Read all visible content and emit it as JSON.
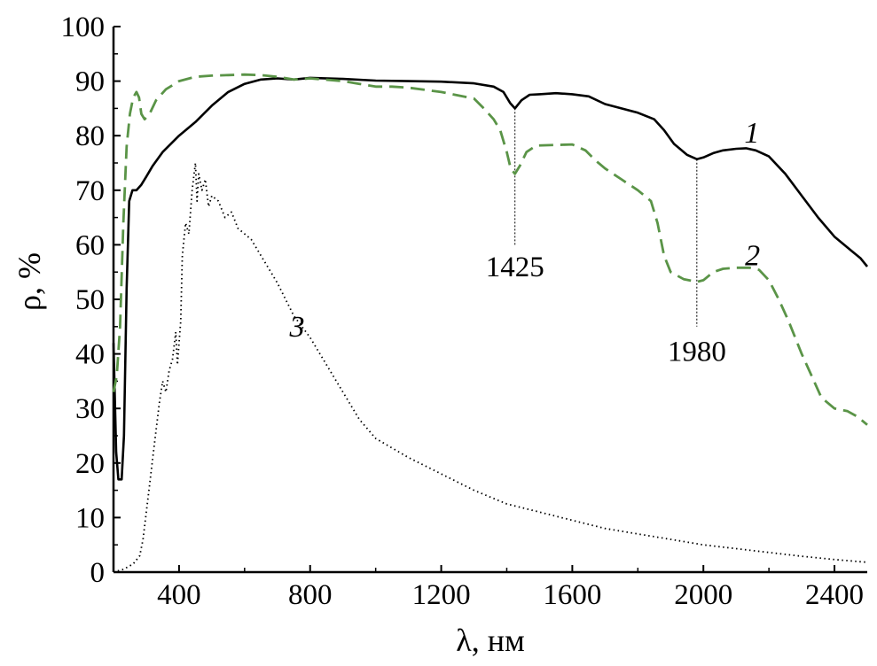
{
  "chart_data": {
    "type": "line",
    "xlabel": "λ, нм",
    "ylabel": "ρ, %",
    "xlim": [
      200,
      2500
    ],
    "ylim": [
      0,
      100
    ],
    "grid": false,
    "x_ticks": [
      400,
      800,
      1200,
      1600,
      2000,
      2400
    ],
    "y_ticks": [
      0,
      10,
      20,
      30,
      40,
      50,
      60,
      70,
      80,
      90,
      100
    ],
    "series": [
      {
        "name": "1",
        "style": "solid",
        "color": "#000000",
        "label_at": [
          2148,
          80.5
        ],
        "points": [
          [
            200,
            42
          ],
          [
            208,
            22
          ],
          [
            215,
            17
          ],
          [
            225,
            17
          ],
          [
            232,
            25
          ],
          [
            240,
            52
          ],
          [
            248,
            68
          ],
          [
            258,
            70
          ],
          [
            270,
            70
          ],
          [
            285,
            71
          ],
          [
            300,
            72.5
          ],
          [
            320,
            74.5
          ],
          [
            350,
            77
          ],
          [
            400,
            80
          ],
          [
            450,
            82.5
          ],
          [
            500,
            85.5
          ],
          [
            550,
            88
          ],
          [
            600,
            89.5
          ],
          [
            650,
            90.3
          ],
          [
            700,
            90.5
          ],
          [
            750,
            90.3
          ],
          [
            800,
            90.6
          ],
          [
            900,
            90.4
          ],
          [
            1000,
            90.1
          ],
          [
            1100,
            90
          ],
          [
            1200,
            89.9
          ],
          [
            1300,
            89.6
          ],
          [
            1360,
            89
          ],
          [
            1390,
            88
          ],
          [
            1410,
            86
          ],
          [
            1425,
            85
          ],
          [
            1445,
            86.5
          ],
          [
            1470,
            87.5
          ],
          [
            1500,
            87.6
          ],
          [
            1550,
            87.8
          ],
          [
            1600,
            87.6
          ],
          [
            1650,
            87.2
          ],
          [
            1700,
            85.8
          ],
          [
            1750,
            85
          ],
          [
            1800,
            84.2
          ],
          [
            1850,
            83
          ],
          [
            1880,
            81
          ],
          [
            1910,
            78.5
          ],
          [
            1950,
            76.5
          ],
          [
            1980,
            75.7
          ],
          [
            2000,
            76
          ],
          [
            2030,
            76.8
          ],
          [
            2060,
            77.3
          ],
          [
            2100,
            77.6
          ],
          [
            2130,
            77.7
          ],
          [
            2160,
            77.3
          ],
          [
            2200,
            76.2
          ],
          [
            2250,
            73
          ],
          [
            2300,
            69
          ],
          [
            2350,
            65
          ],
          [
            2400,
            61.5
          ],
          [
            2450,
            59
          ],
          [
            2480,
            57.5
          ],
          [
            2500,
            56
          ]
        ]
      },
      {
        "name": "2",
        "style": "dashed",
        "color": "#5a9447",
        "label_at": [
          2150,
          58
        ],
        "points": [
          [
            200,
            33
          ],
          [
            210,
            36
          ],
          [
            220,
            45
          ],
          [
            230,
            64
          ],
          [
            240,
            78
          ],
          [
            250,
            84
          ],
          [
            260,
            87
          ],
          [
            270,
            88
          ],
          [
            278,
            87
          ],
          [
            285,
            84
          ],
          [
            295,
            83
          ],
          [
            310,
            84
          ],
          [
            330,
            86.5
          ],
          [
            360,
            88.5
          ],
          [
            400,
            90
          ],
          [
            450,
            90.8
          ],
          [
            500,
            91
          ],
          [
            550,
            91.1
          ],
          [
            600,
            91.2
          ],
          [
            650,
            91.1
          ],
          [
            700,
            90.8
          ],
          [
            750,
            90.3
          ],
          [
            800,
            90.5
          ],
          [
            900,
            90
          ],
          [
            950,
            89.5
          ],
          [
            1000,
            89
          ],
          [
            1050,
            89
          ],
          [
            1100,
            88.8
          ],
          [
            1200,
            88
          ],
          [
            1300,
            86.8
          ],
          [
            1330,
            85
          ],
          [
            1360,
            83
          ],
          [
            1380,
            81
          ],
          [
            1400,
            77
          ],
          [
            1412,
            74
          ],
          [
            1425,
            73
          ],
          [
            1440,
            74.5
          ],
          [
            1460,
            77
          ],
          [
            1490,
            78.2
          ],
          [
            1550,
            78.3
          ],
          [
            1600,
            78.4
          ],
          [
            1640,
            77.3
          ],
          [
            1670,
            75.5
          ],
          [
            1700,
            74
          ],
          [
            1750,
            72
          ],
          [
            1800,
            70
          ],
          [
            1840,
            68
          ],
          [
            1860,
            64
          ],
          [
            1880,
            58
          ],
          [
            1900,
            55
          ],
          [
            1940,
            53.7
          ],
          [
            1980,
            53.2
          ],
          [
            2000,
            53.5
          ],
          [
            2030,
            55
          ],
          [
            2060,
            55.6
          ],
          [
            2100,
            55.8
          ],
          [
            2140,
            55.8
          ],
          [
            2170,
            55.4
          ],
          [
            2200,
            53.5
          ],
          [
            2230,
            50
          ],
          [
            2260,
            46
          ],
          [
            2300,
            40
          ],
          [
            2330,
            36
          ],
          [
            2360,
            32
          ],
          [
            2400,
            30
          ],
          [
            2440,
            29.5
          ],
          [
            2470,
            28.5
          ],
          [
            2500,
            27
          ]
        ]
      },
      {
        "name": "3",
        "style": "dotted",
        "color": "#000000",
        "label_at": [
          760,
          45
        ],
        "points": [
          [
            200,
            0
          ],
          [
            230,
            0.5
          ],
          [
            260,
            1.5
          ],
          [
            280,
            3
          ],
          [
            290,
            6
          ],
          [
            300,
            11
          ],
          [
            310,
            16
          ],
          [
            320,
            21
          ],
          [
            330,
            26
          ],
          [
            340,
            31
          ],
          [
            350,
            35
          ],
          [
            360,
            33
          ],
          [
            370,
            37
          ],
          [
            380,
            39
          ],
          [
            390,
            44
          ],
          [
            395,
            38
          ],
          [
            400,
            42
          ],
          [
            405,
            46
          ],
          [
            410,
            58
          ],
          [
            420,
            64
          ],
          [
            430,
            62
          ],
          [
            440,
            70
          ],
          [
            450,
            75
          ],
          [
            455,
            68
          ],
          [
            460,
            73
          ],
          [
            470,
            70
          ],
          [
            480,
            72
          ],
          [
            490,
            67
          ],
          [
            500,
            69
          ],
          [
            520,
            68
          ],
          [
            540,
            65
          ],
          [
            560,
            66
          ],
          [
            580,
            63
          ],
          [
            600,
            62
          ],
          [
            620,
            61
          ],
          [
            650,
            58
          ],
          [
            700,
            53
          ],
          [
            750,
            47
          ],
          [
            800,
            43
          ],
          [
            850,
            38
          ],
          [
            900,
            33
          ],
          [
            950,
            28
          ],
          [
            1000,
            24.5
          ],
          [
            1100,
            21
          ],
          [
            1200,
            18
          ],
          [
            1300,
            15
          ],
          [
            1400,
            12.5
          ],
          [
            1500,
            11
          ],
          [
            1600,
            9.5
          ],
          [
            1700,
            8
          ],
          [
            1800,
            7
          ],
          [
            1900,
            6
          ],
          [
            2000,
            5
          ],
          [
            2100,
            4.3
          ],
          [
            2200,
            3.6
          ],
          [
            2300,
            2.9
          ],
          [
            2400,
            2.3
          ],
          [
            2500,
            1.8
          ]
        ]
      }
    ],
    "annotations": [
      {
        "text": "1425",
        "x": 1425,
        "y_from": 85,
        "y_to": 60,
        "label_y": 56
      },
      {
        "text": "1980",
        "x": 1980,
        "y_from": 75.7,
        "y_to": 45,
        "label_y": 40.5
      }
    ]
  }
}
